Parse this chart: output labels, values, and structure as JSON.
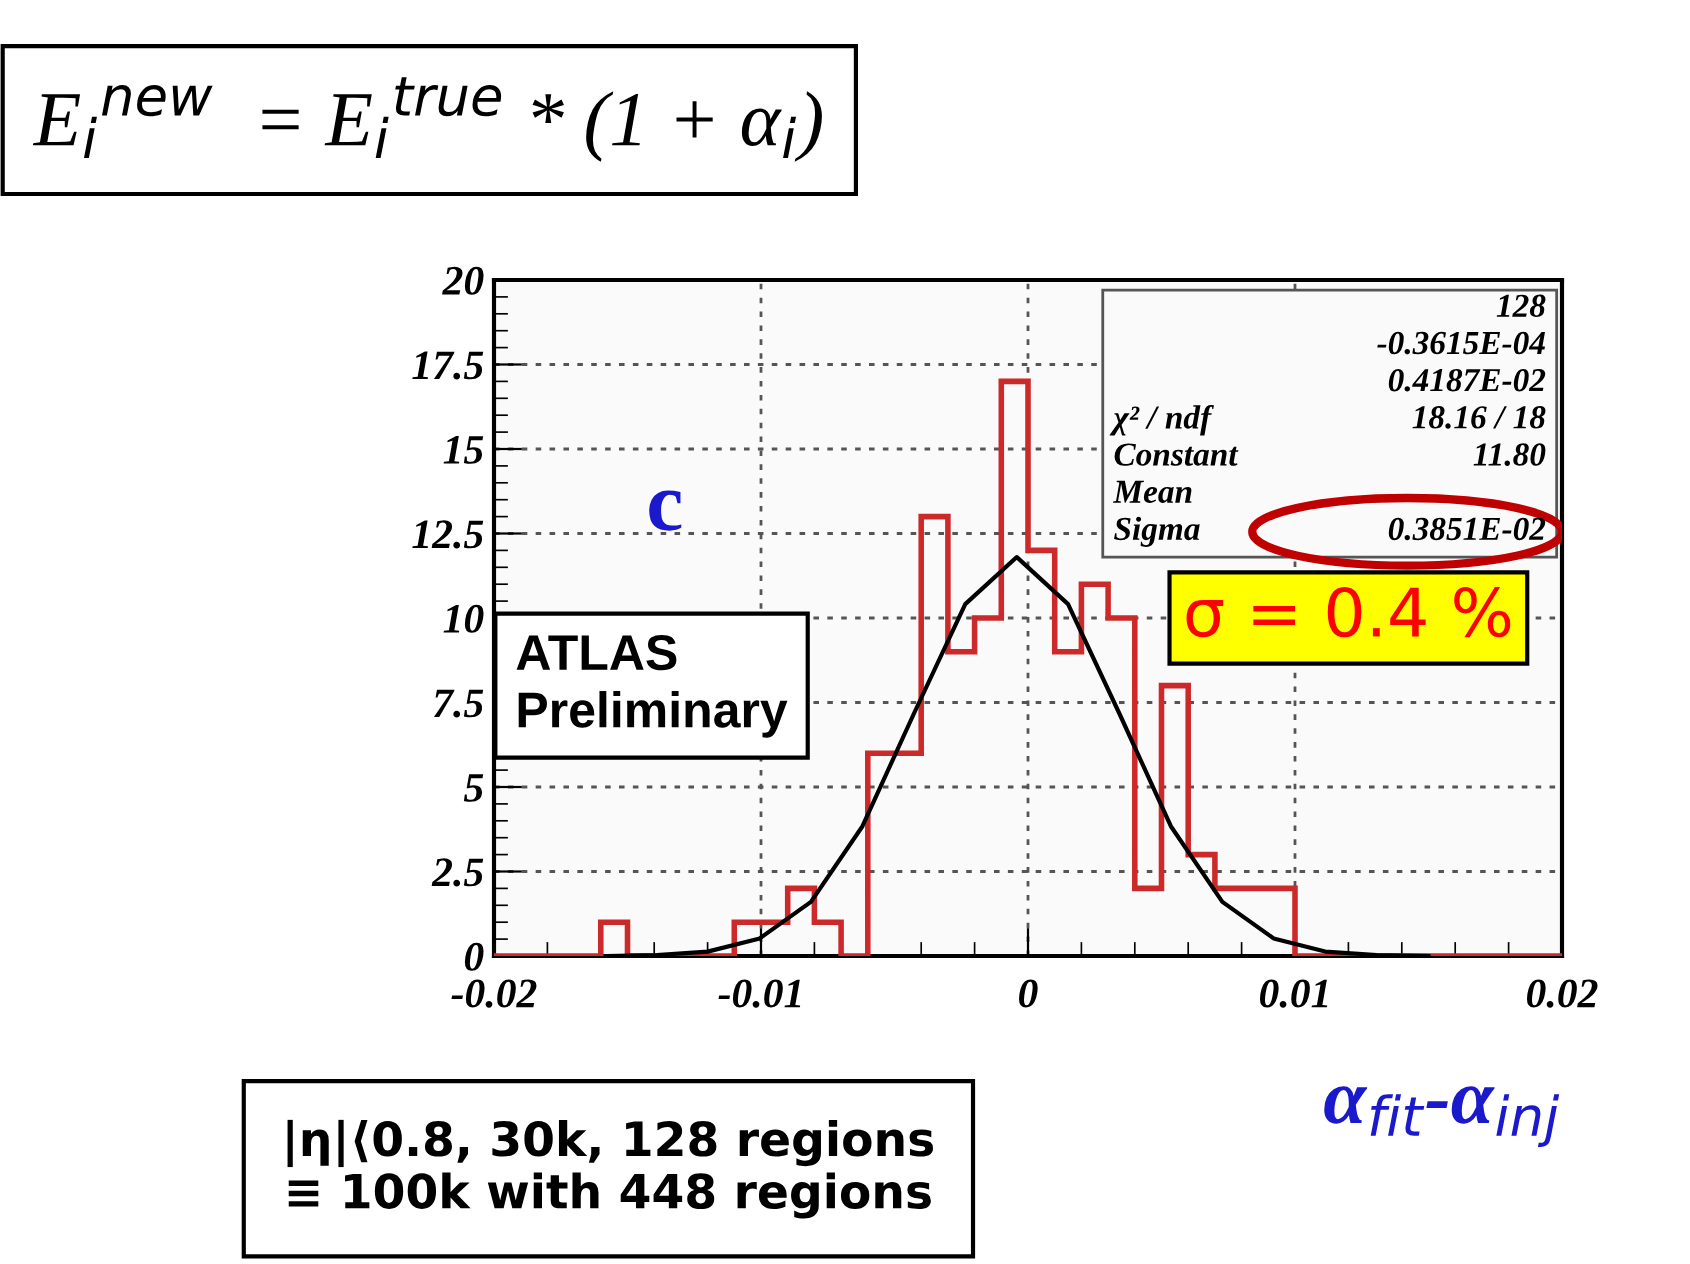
{
  "chart_data": {
    "type": "histogram",
    "bins": [
      -0.02,
      -0.019,
      -0.018,
      -0.017,
      -0.016,
      -0.015,
      -0.014,
      -0.013,
      -0.012,
      -0.011,
      -0.01,
      -0.009,
      -0.008,
      -0.007,
      -0.006,
      -0.005,
      -0.004,
      -0.003,
      -0.002,
      -0.001,
      0,
      0.001,
      0.002,
      0.003,
      0.004,
      0.005,
      0.006,
      0.007,
      0.008,
      0.009,
      0.01,
      0.011,
      0.012,
      0.013,
      0.014,
      0.015,
      0.016,
      0.017,
      0.018,
      0.019,
      0.02
    ],
    "values": [
      0,
      0,
      0,
      0,
      1,
      0,
      0,
      0,
      0,
      1,
      1,
      2,
      1,
      0,
      6,
      6,
      13,
      9,
      10,
      17,
      12,
      9,
      11,
      10,
      2,
      8,
      3,
      2,
      2,
      2,
      0,
      0,
      0,
      0,
      0,
      0,
      0,
      0,
      0,
      0
    ],
    "color": "#cc2a2a",
    "series": [
      {
        "type": "line",
        "color": "#000000",
        "x": [
          -0.0158,
          -0.0139,
          -0.012,
          -0.01005,
          -0.00813,
          -0.0062,
          -0.00428,
          -0.00235,
          -0.00042,
          0.0015,
          0.00343,
          0.00535,
          0.00728,
          0.0092,
          0.01113,
          0.01306,
          0.015
        ],
        "values": [
          0,
          0.03,
          0.13,
          0.52,
          1.6,
          3.84,
          7.16,
          10.41,
          11.8,
          10.41,
          7.16,
          3.84,
          1.6,
          0.52,
          0.13,
          0.03,
          0
        ]
      }
    ],
    "xlabel": "α$_{fit}$-α$_{inj}$",
    "xlim": [
      -0.02,
      0.02
    ],
    "xticks": [
      -0.02,
      -0.01,
      0,
      0.01,
      0.02
    ],
    "ylim": [
      0,
      20
    ],
    "yticks": [
      0,
      2.5,
      5,
      7.5,
      10,
      12.5,
      15,
      17.5,
      20
    ],
    "grid": true,
    "annotations": [
      "E$_{i}$$^{new}$  = E$_{i}$$^{true}$ * (1 + α$_{i}$)",
      "128",
      "-0.3615E-04",
      "0.4187E-02",
      "χ² / ndf\t18.16 / 18",
      "Constant\t11.80",
      "Mean",
      "Sigma\t0.3851E-02",
      "c",
      "ATLAS\nPreliminary",
      "σ = 0.4 %",
      "|η|⟨0.8, 30k, 128 regions\n≡ 100k with 448 regions"
    ]
  }
}
